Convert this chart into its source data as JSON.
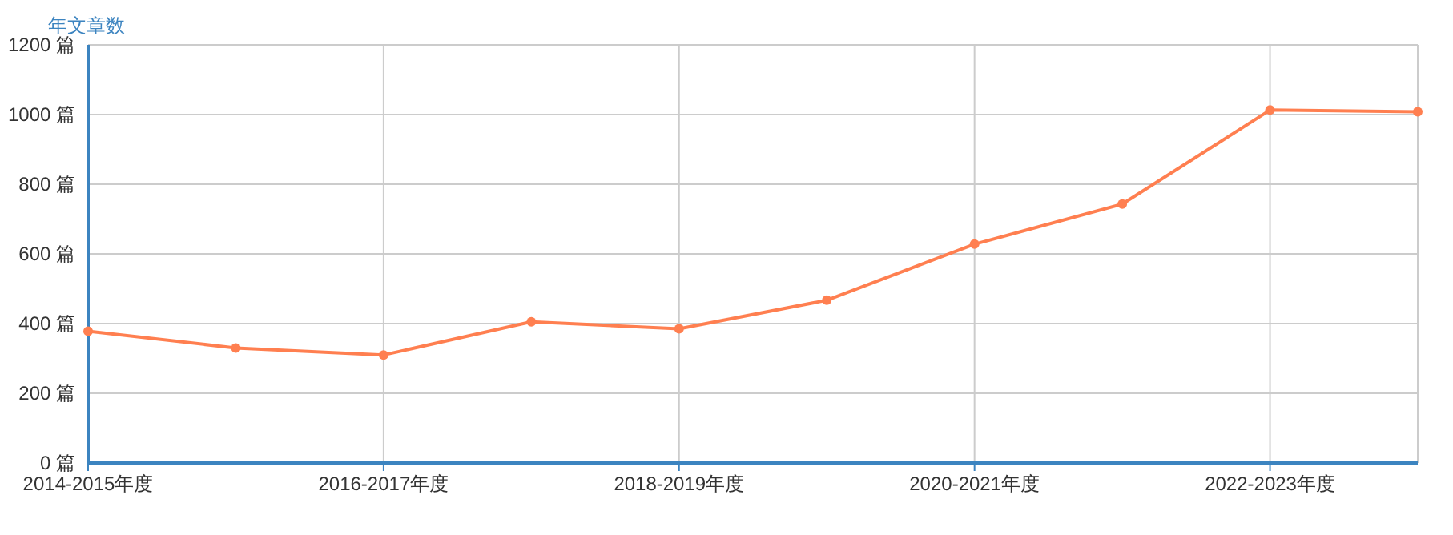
{
  "chart_data": {
    "type": "line",
    "ylabel": "年文章数",
    "categories": [
      "2014-2015年度",
      null,
      "2016-2017年度",
      null,
      "2018-2019年度",
      null,
      "2020-2021年度",
      null,
      "2022-2023年度",
      null
    ],
    "series": [
      {
        "color": "#ff7f50",
        "values": [
          378,
          330,
          310,
          405,
          385,
          467,
          628,
          743,
          1013,
          1008
        ]
      }
    ],
    "ylim": [
      0,
      1200
    ],
    "yticks": [
      {
        "value": 0,
        "label": "0 篇"
      },
      {
        "value": 200,
        "label": "200 篇"
      },
      {
        "value": 400,
        "label": "400 篇"
      },
      {
        "value": 600,
        "label": "600 篇"
      },
      {
        "value": 800,
        "label": "800 篇"
      },
      {
        "value": 1000,
        "label": "1000 篇"
      },
      {
        "value": 1200,
        "label": "1200 篇"
      }
    ],
    "grid": true,
    "marker": "circle",
    "line_style": "solid"
  }
}
